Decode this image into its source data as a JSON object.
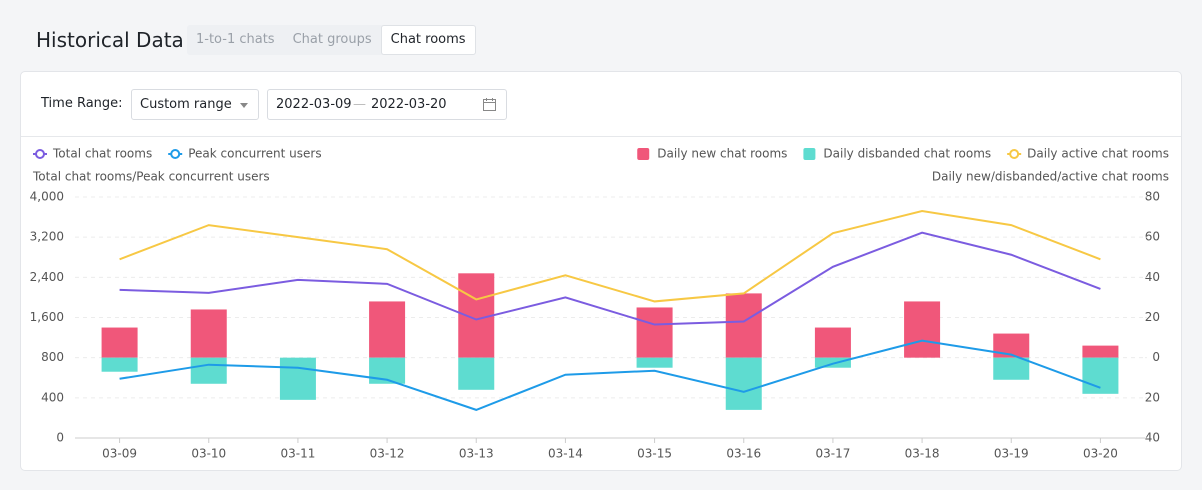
{
  "header": {
    "title": "Historical Data",
    "tabs": [
      "1-to-1 chats",
      "Chat groups",
      "Chat rooms"
    ],
    "active_tab": 2
  },
  "filters": {
    "label": "Time Range:",
    "select": "Custom range",
    "date_start": "2022-03-09",
    "date_separator": "—",
    "date_end": "2022-03-20"
  },
  "chart_data": {
    "type": "bar-line",
    "ylabel": "Total chat rooms/Peak concurrent users",
    "y2label": "Daily new/disbanded/active chat rooms",
    "categories": [
      "03-09",
      "03-10",
      "03-11",
      "03-12",
      "03-13",
      "03-14",
      "03-15",
      "03-16",
      "03-17",
      "03-18",
      "03-19",
      "03-20"
    ],
    "series": [
      {
        "name": "Total chat rooms",
        "type": "line",
        "axis": "y",
        "color": "#7b5ce0",
        "values": [
          2150,
          2090,
          2350,
          2270,
          1560,
          2000,
          1460,
          1520,
          2610,
          3290,
          2850,
          2170
        ]
      },
      {
        "name": "Peak concurrent users",
        "type": "line",
        "axis": "y",
        "color": "#1e9be8",
        "values": [
          590,
          730,
          700,
          580,
          280,
          630,
          670,
          460,
          740,
          1140,
          860,
          500
        ]
      },
      {
        "name": "Daily new chat rooms",
        "type": "bar",
        "axis": "y2",
        "color": "#f0577a",
        "values": [
          15,
          24,
          0,
          28,
          42,
          0,
          25,
          32,
          15,
          28,
          12,
          6
        ]
      },
      {
        "name": "Daily disbanded chat rooms",
        "type": "bar",
        "axis": "y2",
        "color": "#5edcd0",
        "values": [
          -7,
          -13,
          -21,
          -13,
          -16,
          0,
          -5,
          -26,
          -5,
          0,
          -11,
          -18
        ]
      },
      {
        "name": "Daily active chat rooms",
        "type": "line",
        "axis": "y2",
        "color": "#f7c844",
        "values": [
          49,
          66,
          60,
          54,
          29,
          41,
          28,
          32,
          62,
          73,
          66,
          49
        ]
      }
    ],
    "ylim": [
      0,
      4000
    ],
    "yticks": [
      0,
      400,
      800,
      {
        "value": 1600,
        "label": "1,600"
      },
      {
        "value": 2400,
        "label": "2,400"
      },
      {
        "value": 3200,
        "label": "3,200"
      },
      {
        "value": 4000,
        "label": "4,000"
      }
    ],
    "y2lim": [
      -40,
      80
    ],
    "y2ticks": [
      {
        "value": -40,
        "label": "40"
      },
      {
        "value": -20,
        "label": "20"
      },
      0,
      20,
      40,
      60,
      80
    ],
    "grid": true
  }
}
